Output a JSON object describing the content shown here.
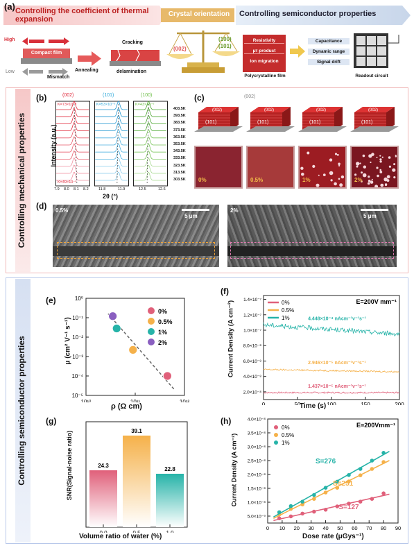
{
  "panel_a": {
    "label": "(a)",
    "left_title": "Controlling the coefficient of thermal expansion",
    "center_title": "Crystal orientation",
    "right_title": "Controlling semiconductor properties",
    "high": "High",
    "low": "Low",
    "compact_film": "Compact film",
    "mismatch": "Mismatch",
    "annealing": "Annealing",
    "cracking": "Cracking",
    "delamination": "delamination",
    "scale_left": "(002)",
    "scale_right_1": "(100)",
    "scale_right_2": "(101)",
    "props": [
      "Resistivity",
      "μτ product",
      "Ion migration"
    ],
    "poly_film": "Polycrystalline film",
    "outputs": [
      "Capacitance",
      "Dynamic range",
      "Signal drift"
    ],
    "readout": "Readout circuit"
  },
  "side_labels": {
    "mech": "Controlling mechanical properties",
    "semi": "Controlling semiconductor properties"
  },
  "panel_b": {
    "label": "(b)",
    "ylabel": "Intensity (a.u.)",
    "xlabel": "2θ (°)",
    "peaks": [
      {
        "name": "(002)",
        "k_top": "K=73×10⁻⁶",
        "k_bot": "K=49×10⁻⁶",
        "ticks": [
          "7.9",
          "8.0",
          "8.1",
          "8.2"
        ],
        "color": "#e0283a"
      },
      {
        "name": "(101)",
        "k_top": "K=53×10⁻⁶",
        "ticks": [
          "11.8",
          "11.9"
        ],
        "color": "#2aa6d9"
      },
      {
        "name": "(100)",
        "k_top": "K=43×10⁻⁶",
        "ticks": [
          "12.5",
          "12.6"
        ],
        "color": "#6cbd45"
      }
    ],
    "temps": [
      "403.5K",
      "393.5K",
      "383.5K",
      "373.5K",
      "363.5K",
      "353.5K",
      "343.5K",
      "333.5K",
      "323.5K",
      "313.5K",
      "303.5K"
    ]
  },
  "panel_c": {
    "label": "(c)",
    "orient_top": "(002)",
    "face_top": "(002)",
    "face_front": "(101)",
    "photos": [
      "0%",
      "0.5%",
      "1%",
      "2%"
    ]
  },
  "panel_d": {
    "label": "(d)",
    "left_pct": "0.5%",
    "right_pct": "2%",
    "scale": "5 μm"
  },
  "panel_e": {
    "label": "(e)",
    "ylabel": "μ (cm² V⁻¹ s⁻¹)",
    "xlabel": "ρ (Ω cm)",
    "yticks": [
      "10⁰",
      "10⁻¹",
      "10⁻²",
      "10⁻³",
      "10⁻⁴",
      "10⁻⁵"
    ],
    "xticks": [
      "10¹⁰",
      "10¹¹",
      "10¹²"
    ]
  },
  "panel_f": {
    "label": "(f)",
    "ylabel": "Current Density (A cm⁻²)",
    "xlabel": "Time (s)",
    "condition": "E=200V mm⁻¹",
    "yticks": [
      "2.0×10⁻⁸",
      "4.0×10⁻⁸",
      "6.0×10⁻⁸",
      "8.0×10⁻⁸",
      "1.0×10⁻⁷",
      "1.2×10⁻⁷",
      "1.4×10⁻⁷"
    ],
    "xticks": [
      "0",
      "50",
      "100",
      "150",
      "200"
    ],
    "ann": [
      "4.448×10⁻⁴ nAcm⁻¹v⁻¹s⁻¹",
      "2.946×10⁻⁵ nAcm⁻¹v⁻¹s⁻¹",
      "1.437×10⁻⁵ nAcm⁻¹v⁻¹s⁻¹"
    ]
  },
  "panel_g": {
    "label": "(g)",
    "ylabel": "SNR(Signal-noise ratio)",
    "xlabel": "Volume ratio of water (%)",
    "xticks": [
      "0.0",
      "0.5",
      "1.0"
    ]
  },
  "panel_h": {
    "label": "(h)",
    "ylabel": "Current Density (A cm⁻²)",
    "xlabel": "Dose rate (μGys⁻¹)",
    "condition": "E=200Vmm⁻¹",
    "yticks": [
      "5.0×10⁻⁹",
      "1.0×10⁻⁸",
      "1.5×10⁻⁸",
      "2.0×10⁻⁸",
      "2.5×10⁻⁸",
      "3.0×10⁻⁸",
      "3.5×10⁻⁸",
      "4.0×10⁻⁸"
    ],
    "xticks": [
      "0",
      "10",
      "20",
      "30",
      "40",
      "50",
      "60",
      "70",
      "80",
      "90"
    ],
    "slopes": [
      "S=276",
      "S=251",
      "S=127"
    ]
  },
  "chart_data": [
    {
      "type": "scatter",
      "series": [
        {
          "name": "0%",
          "color": "#e0607a",
          "x": [
            450000000000.0
          ],
          "y": [
            0.0001
          ]
        },
        {
          "name": "0.5%",
          "color": "#f5b14a",
          "x": [
            90000000000.0
          ],
          "y": [
            0.0022
          ]
        },
        {
          "name": "1%",
          "color": "#26b3a8",
          "x": [
            42000000000.0
          ],
          "y": [
            0.028
          ]
        },
        {
          "name": "2%",
          "color": "#8a5fc0",
          "x": [
            35000000000.0
          ],
          "y": [
            0.12
          ]
        }
      ],
      "xscale": "log",
      "yscale": "log",
      "xlim": [
        10000000000.0,
        1000000000000.0
      ],
      "ylim": [
        1e-05,
        1
      ]
    },
    {
      "type": "line",
      "series": [
        {
          "name": "0%",
          "color": "#e0607a",
          "level": 1.9e-08
        },
        {
          "name": "0.5%",
          "color": "#f5b14a",
          "level": 4.6e-08
        },
        {
          "name": "1%",
          "color": "#26b3a8",
          "level": 9.5e-08
        }
      ],
      "xlim": [
        0,
        200
      ],
      "ylim": [
        1e-08,
        1.45e-07
      ]
    },
    {
      "type": "bar",
      "categories": [
        "0.0",
        "0.5",
        "1.0"
      ],
      "values": [
        24.3,
        39.1,
        22.8
      ],
      "colors": [
        "#e0607a",
        "#f5b14a",
        "#26b3a8"
      ],
      "ylim": [
        0,
        45
      ]
    },
    {
      "type": "scatter",
      "series": [
        {
          "name": "0%",
          "color": "#e0607a",
          "x": [
            8,
            16,
            24,
            32,
            40,
            48,
            56,
            64,
            72,
            80
          ],
          "y": [
            4.2e-09,
            4.9e-09,
            5.9e-09,
            6.6e-09,
            7.3e-09,
            8.5e-09,
            9.5e-09,
            1.02e-08,
            1.12e-08,
            1.32e-08
          ]
        },
        {
          "name": "0.5%",
          "color": "#f5b14a",
          "x": [
            8,
            16,
            24,
            32,
            40,
            48,
            56,
            64,
            72,
            80
          ],
          "y": [
            5.6e-09,
            7.6e-09,
            9.2e-09,
            1.12e-08,
            1.35e-08,
            1.52e-08,
            1.75e-08,
            1.97e-08,
            2.2e-08,
            2.45e-08
          ]
        },
        {
          "name": "1%",
          "color": "#26b3a8",
          "x": [
            8,
            16,
            24,
            32,
            40,
            48,
            56,
            64,
            72,
            80
          ],
          "y": [
            6.4e-09,
            8.6e-09,
            1.02e-08,
            1.26e-08,
            1.52e-08,
            1.74e-08,
            1.98e-08,
            2.2e-08,
            2.5e-08,
            2.78e-08
          ]
        }
      ],
      "xlim": [
        0,
        90
      ],
      "ylim": [
        2.5e-09,
        4e-08
      ]
    }
  ]
}
